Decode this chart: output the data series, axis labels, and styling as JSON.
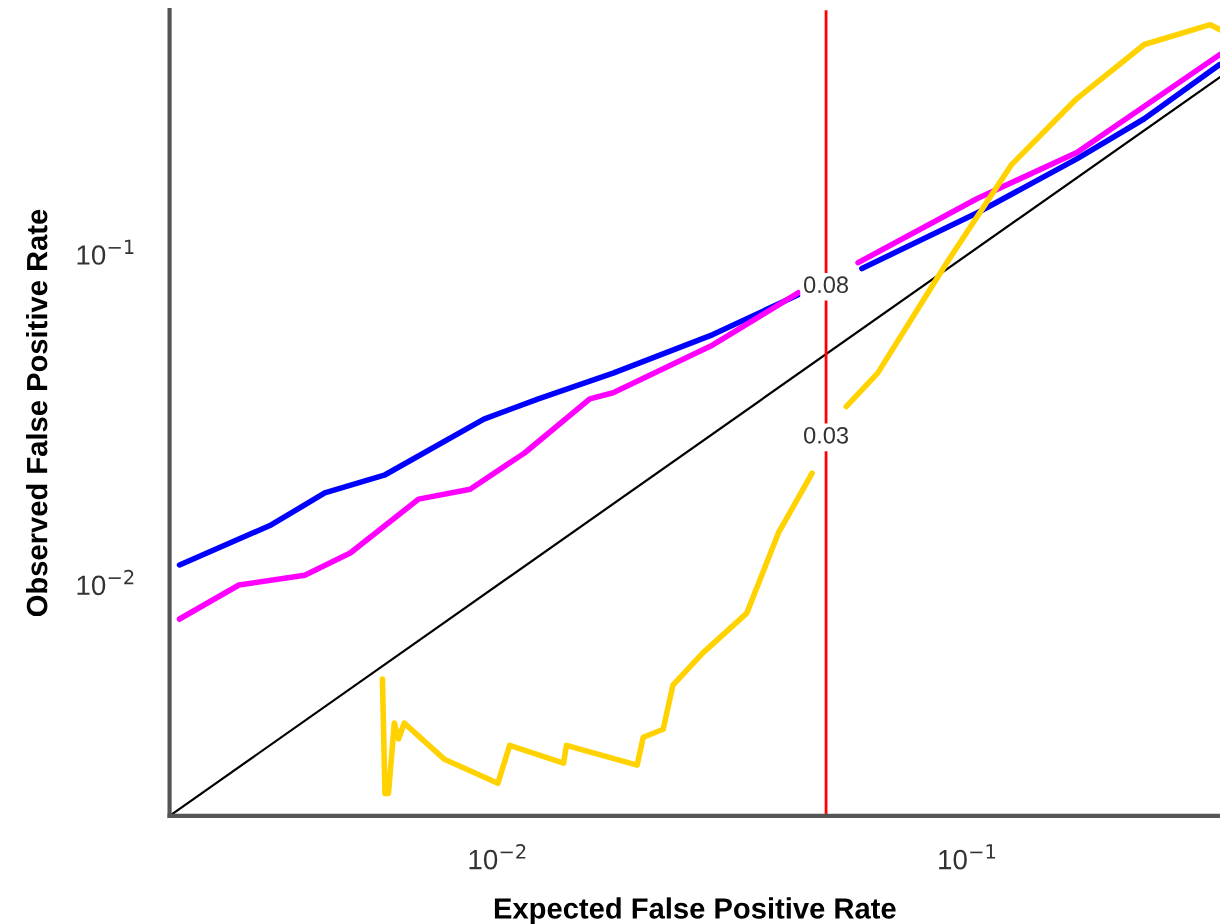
{
  "chart_data": {
    "type": "line",
    "xlabel": "Expected False Positive Rate",
    "ylabel": "Observed False Positive Rate",
    "log": "xy",
    "xlim": [
      0.002,
      0.345
    ],
    "ylim": [
      0.002,
      0.55
    ],
    "xticks": [
      {
        "value": 0.01,
        "label": "10$^{−2}$"
      },
      {
        "value": 0.1,
        "label": "10$^{−1}$"
      }
    ],
    "yticks": [
      {
        "value": 0.01,
        "label": "10$^{−2}$"
      },
      {
        "value": 0.1,
        "label": "10$^{−1}$"
      }
    ],
    "grid": false,
    "legend": false,
    "series": [
      {
        "color": "#000000",
        "x": [
          0.002,
          0.345
        ],
        "values": [
          0.002,
          0.345
        ]
      },
      {
        "color": "#0000ff",
        "x": [
          0.0021,
          0.00329,
          0.00428,
          0.00573,
          0.00934,
          0.0122,
          0.0176,
          0.0287,
          0.0436,
          0.05,
          0.0596,
          0.105,
          0.171,
          0.238,
          0.345
        ],
        "values": [
          0.0115,
          0.0152,
          0.019,
          0.0215,
          0.0318,
          0.0366,
          0.0438,
          0.0573,
          0.0756,
          null,
          0.0908,
          0.134,
          0.195,
          0.258,
          0.377
        ]
      },
      {
        "color": "#ff00ff",
        "x": [
          0.0021,
          0.00281,
          0.00388,
          0.00485,
          0.00678,
          0.00873,
          0.0114,
          0.0157,
          0.0176,
          0.0287,
          0.0436,
          0.05,
          0.0585,
          0.105,
          0.171,
          0.345
        ],
        "values": [
          0.00789,
          0.01,
          0.0107,
          0.0125,
          0.0182,
          0.0195,
          0.0251,
          0.0366,
          0.0382,
          0.0533,
          0.0767,
          null,
          0.0946,
          0.148,
          0.204,
          0.404
        ]
      },
      {
        "color": "#ffd200",
        "x": [
          0.00568,
          0.00575,
          0.00585,
          0.00602,
          0.00615,
          0.00632,
          0.00769,
          0.01,
          0.0106,
          0.0138,
          0.014,
          0.0198,
          0.0204,
          0.0225,
          0.0236,
          0.0273,
          0.0339,
          0.0396,
          0.0467,
          0.05,
          0.0552,
          0.0644,
          0.0898,
          0.124,
          0.171,
          0.238,
          0.329,
          0.345
        ],
        "values": [
          0.00519,
          0.00234,
          0.00234,
          0.00382,
          0.00342,
          0.00382,
          0.00297,
          0.00251,
          0.00327,
          0.00289,
          0.00327,
          0.00285,
          0.00346,
          0.00366,
          0.00498,
          0.00622,
          0.00822,
          0.0144,
          0.0218,
          null,
          0.0347,
          0.0438,
          0.0933,
          0.187,
          0.297,
          0.433,
          0.497,
          0.48
        ]
      }
    ],
    "ref_lines": [
      {
        "axis": "x",
        "value": 0.05,
        "color": "#ff0000"
      }
    ],
    "annotations": [
      {
        "text": "0.08",
        "x": 0.05,
        "y": 0.08
      },
      {
        "text": "0.03",
        "x": 0.05,
        "y": 0.028
      }
    ]
  }
}
